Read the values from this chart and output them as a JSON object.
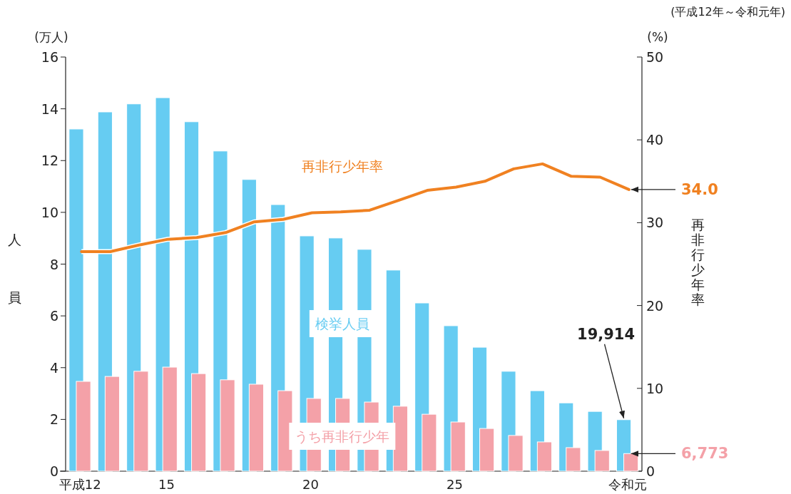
{
  "chart_data": {
    "type": "bar",
    "subtitle": "(平成12年～令和元年)",
    "ylabel": "人員",
    "y2label": "再非行少年率",
    "annotations": [
      "(万人)",
      "(%)",
      {
        "text": "19,914",
        "x": "令和元",
        "y": 1.99
      },
      {
        "text": "6,773",
        "x": "令和元",
        "y": 0.68
      }
    ],
    "categories": [
      "平成12",
      null,
      null,
      "15",
      null,
      null,
      null,
      null,
      "20",
      null,
      null,
      null,
      null,
      "25",
      null,
      null,
      null,
      null,
      null,
      "令和元"
    ],
    "series": [
      {
        "name": "検挙人員",
        "color": "#66ccf2",
        "values": [
          13.22,
          13.88,
          14.19,
          14.43,
          13.5,
          12.37,
          11.27,
          10.3,
          9.09,
          9.01,
          8.57,
          7.77,
          6.5,
          5.62,
          4.79,
          3.86,
          3.11,
          2.64,
          2.31,
          1.99
        ]
      },
      {
        "name": "うち再非行少年",
        "color": "#f4a1a8",
        "values": [
          3.47,
          3.66,
          3.86,
          4.02,
          3.77,
          3.53,
          3.36,
          3.11,
          2.81,
          2.81,
          2.67,
          2.51,
          2.2,
          1.9,
          1.65,
          1.38,
          1.13,
          0.91,
          0.8,
          0.68
        ]
      },
      {
        "name": "再非行少年率",
        "type": "line",
        "axis": "y2",
        "color": "#f08121",
        "values": [
          26.5,
          26.5,
          27.3,
          28.0,
          28.2,
          28.8,
          30.1,
          30.4,
          31.2,
          31.3,
          31.5,
          32.7,
          33.9,
          34.3,
          35.0,
          36.5,
          37.1,
          35.6,
          35.5,
          34.0
        ],
        "value_labels": [
          null,
          null,
          null,
          null,
          null,
          null,
          null,
          null,
          null,
          null,
          null,
          null,
          null,
          null,
          null,
          null,
          null,
          null,
          null,
          "34.0"
        ]
      }
    ],
    "ylim": [
      0,
      16
    ],
    "yticks": [
      0,
      2,
      4,
      6,
      8,
      10,
      12,
      14,
      16
    ],
    "y2lim": [
      0,
      50
    ],
    "y2ticks": [
      0,
      10,
      20,
      30,
      40,
      50
    ],
    "legend": false,
    "grid": false
  }
}
